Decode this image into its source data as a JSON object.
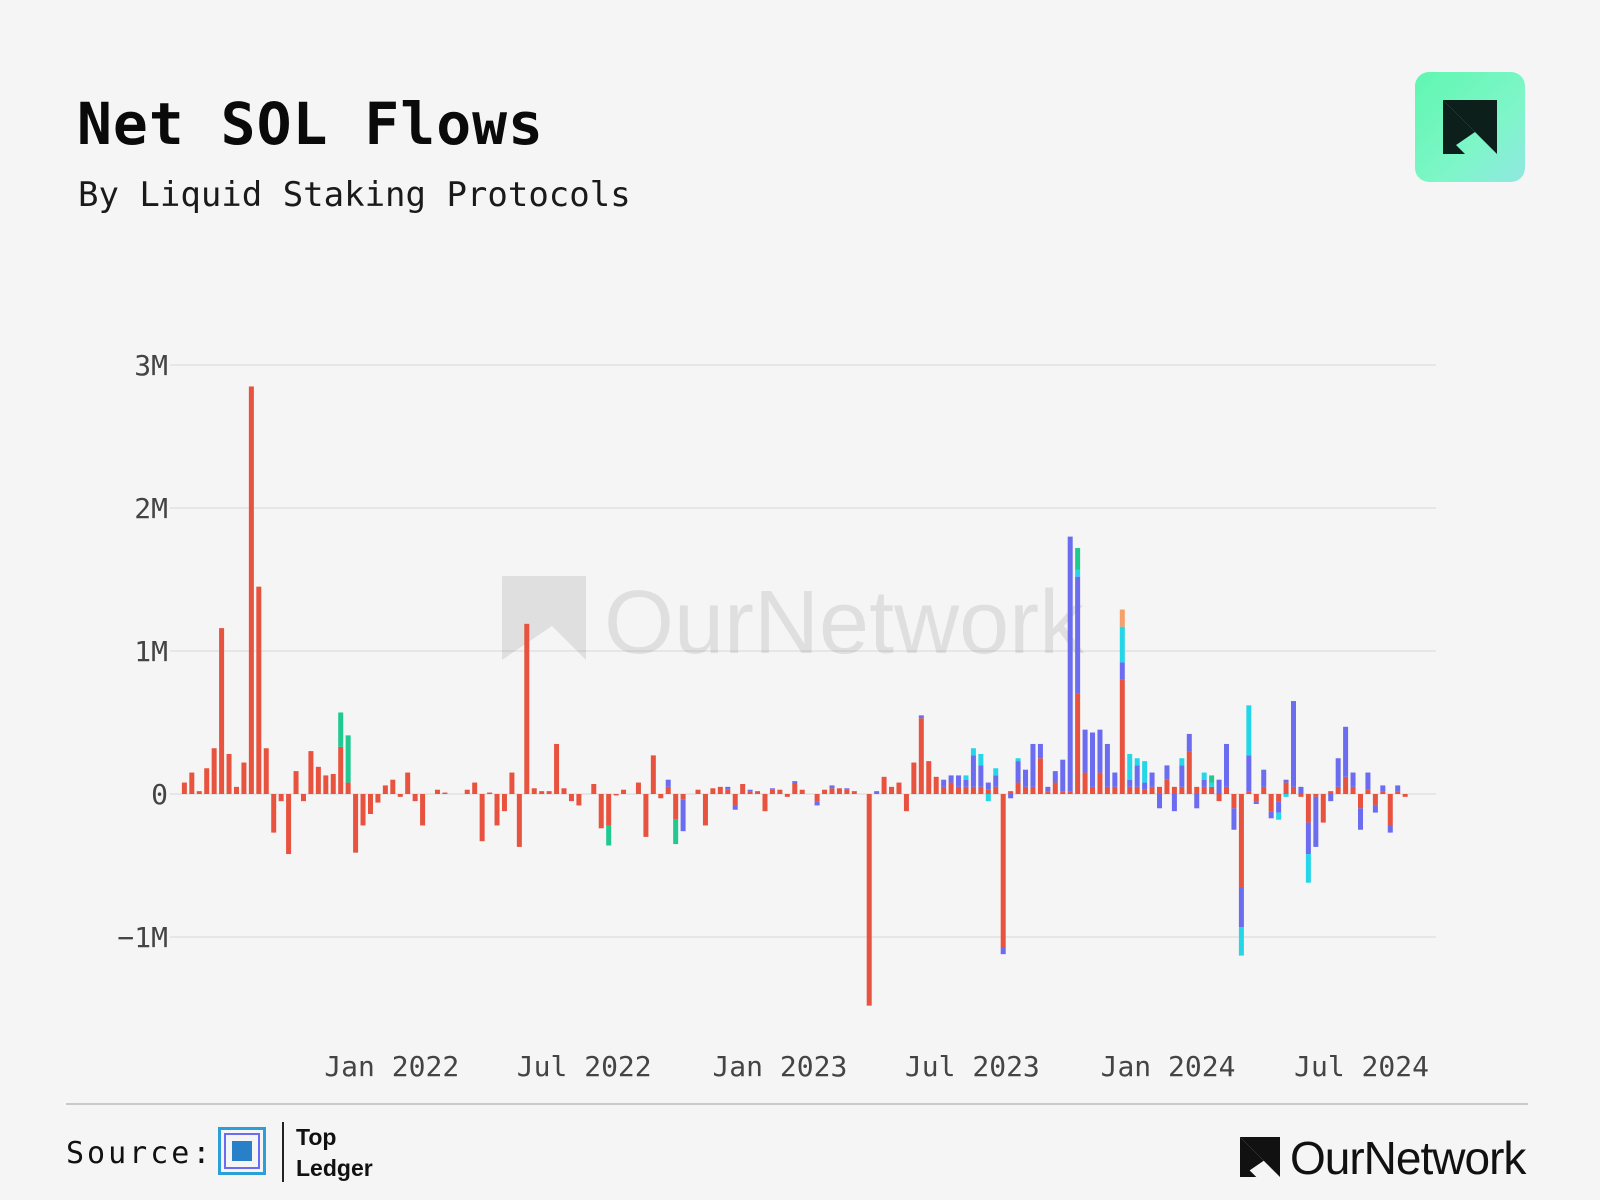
{
  "title": "Net SOL Flows",
  "subtitle": "By Liquid Staking Protocols",
  "footer": {
    "source_label": "Source:",
    "source_name": "Top Ledger",
    "brand": "OurNetwork"
  },
  "watermark": "OurNetwork",
  "colors": {
    "background": "#f5f5f5",
    "red": "#e8533f",
    "blue": "#6b6cf0",
    "cyan": "#25d6e8",
    "green": "#1fc990",
    "orange": "#f5a06a",
    "grid": "#e2e2e2",
    "logo_green": "#5ff7b0"
  },
  "chart_data": {
    "type": "bar",
    "stacked": true,
    "ylim": [
      -1.55,
      3.1
    ],
    "yticks": [
      3,
      2,
      1,
      0,
      -1
    ],
    "ytick_labels": [
      "3M",
      "2M",
      "1M",
      "0",
      "−1M"
    ],
    "xlim": [
      "2021-06-14",
      "2024-09-09"
    ],
    "xticks": [
      "2022-01-01",
      "2022-07-01",
      "2023-01-01",
      "2023-07-01",
      "2024-01-01",
      "2024-07-01"
    ],
    "xtick_labels": [
      "Jan 2022",
      "Jul 2022",
      "Jan 2023",
      "Jul 2023",
      "Jan 2024",
      "Jul 2024"
    ],
    "grid": true,
    "units": "SOL (millions)",
    "series": [
      {
        "color": "#e8533f"
      },
      {
        "color": "#6b6cf0"
      },
      {
        "color": "#25d6e8"
      },
      {
        "color": "#1fc990"
      },
      {
        "color": "#f5a06a"
      }
    ],
    "bars": [
      {
        "date": "2021-06-20",
        "values": [
          0.08
        ]
      },
      {
        "date": "2021-06-27",
        "values": [
          0.15
        ]
      },
      {
        "date": "2021-07-04",
        "values": [
          0.02
        ]
      },
      {
        "date": "2021-07-11",
        "values": [
          0.18
        ]
      },
      {
        "date": "2021-07-18",
        "values": [
          0.32
        ]
      },
      {
        "date": "2021-07-25",
        "values": [
          1.16
        ]
      },
      {
        "date": "2021-08-01",
        "values": [
          0.28
        ]
      },
      {
        "date": "2021-08-08",
        "values": [
          0.05
        ]
      },
      {
        "date": "2021-08-15",
        "values": [
          0.22
        ]
      },
      {
        "date": "2021-08-22",
        "values": [
          2.85
        ]
      },
      {
        "date": "2021-08-29",
        "values": [
          1.45
        ]
      },
      {
        "date": "2021-09-05",
        "values": [
          0.32
        ]
      },
      {
        "date": "2021-09-12",
        "values": [
          -0.27
        ]
      },
      {
        "date": "2021-09-19",
        "values": [
          -0.05
        ]
      },
      {
        "date": "2021-09-26",
        "values": [
          -0.42
        ]
      },
      {
        "date": "2021-10-03",
        "values": [
          0.16
        ]
      },
      {
        "date": "2021-10-10",
        "values": [
          -0.05
        ]
      },
      {
        "date": "2021-10-17",
        "values": [
          0.3
        ]
      },
      {
        "date": "2021-10-24",
        "values": [
          0.19
        ]
      },
      {
        "date": "2021-10-31",
        "values": [
          0.13
        ]
      },
      {
        "date": "2021-11-07",
        "values": [
          0.14
        ]
      },
      {
        "date": "2021-11-14",
        "values": [
          0.33,
          0,
          0,
          0.24
        ]
      },
      {
        "date": "2021-11-21",
        "values": [
          0.08,
          0,
          0,
          0.33
        ]
      },
      {
        "date": "2021-11-28",
        "values": [
          -0.41
        ]
      },
      {
        "date": "2021-12-05",
        "values": [
          -0.22
        ]
      },
      {
        "date": "2021-12-12",
        "values": [
          -0.14
        ]
      },
      {
        "date": "2021-12-19",
        "values": [
          -0.06
        ]
      },
      {
        "date": "2021-12-26",
        "values": [
          0.06
        ]
      },
      {
        "date": "2022-01-02",
        "values": [
          0.1
        ]
      },
      {
        "date": "2022-01-09",
        "values": [
          -0.02
        ]
      },
      {
        "date": "2022-01-16",
        "values": [
          0.15
        ]
      },
      {
        "date": "2022-01-23",
        "values": [
          -0.05
        ]
      },
      {
        "date": "2022-01-30",
        "values": [
          -0.22
        ]
      },
      {
        "date": "2022-02-13",
        "values": [
          0.03
        ]
      },
      {
        "date": "2022-02-20",
        "values": [
          0.01
        ]
      },
      {
        "date": "2022-03-13",
        "values": [
          0.03
        ]
      },
      {
        "date": "2022-03-20",
        "values": [
          0.08
        ]
      },
      {
        "date": "2022-03-27",
        "values": [
          -0.33
        ]
      },
      {
        "date": "2022-04-03",
        "values": [
          0.01
        ]
      },
      {
        "date": "2022-04-10",
        "values": [
          -0.22
        ]
      },
      {
        "date": "2022-04-17",
        "values": [
          -0.12
        ]
      },
      {
        "date": "2022-04-24",
        "values": [
          0.15
        ]
      },
      {
        "date": "2022-05-01",
        "values": [
          -0.37
        ]
      },
      {
        "date": "2022-05-08",
        "values": [
          1.19
        ]
      },
      {
        "date": "2022-05-15",
        "values": [
          0.04
        ]
      },
      {
        "date": "2022-05-22",
        "values": [
          0.02
        ]
      },
      {
        "date": "2022-05-29",
        "values": [
          0.02
        ]
      },
      {
        "date": "2022-06-05",
        "values": [
          0.35
        ]
      },
      {
        "date": "2022-06-12",
        "values": [
          0.04
        ]
      },
      {
        "date": "2022-06-19",
        "values": [
          -0.05
        ]
      },
      {
        "date": "2022-06-26",
        "values": [
          -0.08
        ]
      },
      {
        "date": "2022-07-10",
        "values": [
          0.07
        ]
      },
      {
        "date": "2022-07-17",
        "values": [
          -0.24
        ]
      },
      {
        "date": "2022-07-24",
        "values": [
          -0.22,
          0,
          0,
          -0.14
        ]
      },
      {
        "date": "2022-07-31",
        "values": [
          -0.01
        ]
      },
      {
        "date": "2022-08-07",
        "values": [
          0.03
        ]
      },
      {
        "date": "2022-08-21",
        "values": [
          0.08
        ]
      },
      {
        "date": "2022-08-28",
        "values": [
          -0.3
        ]
      },
      {
        "date": "2022-09-04",
        "values": [
          0.27
        ]
      },
      {
        "date": "2022-09-11",
        "values": [
          -0.03
        ]
      },
      {
        "date": "2022-09-18",
        "values": [
          0.05,
          0.05
        ]
      },
      {
        "date": "2022-09-25",
        "values": [
          -0.18,
          0,
          0,
          -0.17
        ]
      },
      {
        "date": "2022-10-02",
        "values": [
          -0.04,
          -0.22
        ]
      },
      {
        "date": "2022-10-16",
        "values": [
          0.03
        ]
      },
      {
        "date": "2022-10-23",
        "values": [
          -0.22
        ]
      },
      {
        "date": "2022-10-30",
        "values": [
          0.04
        ]
      },
      {
        "date": "2022-11-06",
        "values": [
          0.05
        ]
      },
      {
        "date": "2022-11-13",
        "values": [
          0.03,
          0.02
        ]
      },
      {
        "date": "2022-11-20",
        "values": [
          -0.08,
          -0.03
        ]
      },
      {
        "date": "2022-11-27",
        "values": [
          0.07
        ]
      },
      {
        "date": "2022-12-04",
        "values": [
          0.02,
          0.01
        ]
      },
      {
        "date": "2022-12-11",
        "values": [
          0.02
        ]
      },
      {
        "date": "2022-12-18",
        "values": [
          -0.12
        ]
      },
      {
        "date": "2022-12-25",
        "values": [
          0.03,
          0.01
        ]
      },
      {
        "date": "2023-01-01",
        "values": [
          0.03
        ]
      },
      {
        "date": "2023-01-08",
        "values": [
          -0.02
        ]
      },
      {
        "date": "2023-01-15",
        "values": [
          0.07,
          0.02
        ]
      },
      {
        "date": "2023-01-22",
        "values": [
          0.03
        ]
      },
      {
        "date": "2023-02-05",
        "values": [
          -0.05,
          -0.03
        ]
      },
      {
        "date": "2023-02-12",
        "values": [
          0.03
        ]
      },
      {
        "date": "2023-02-19",
        "values": [
          0.04,
          0.02
        ]
      },
      {
        "date": "2023-02-26",
        "values": [
          0.04
        ]
      },
      {
        "date": "2023-03-05",
        "values": [
          0.03,
          0.01
        ]
      },
      {
        "date": "2023-03-12",
        "values": [
          0.02
        ]
      },
      {
        "date": "2023-03-26",
        "values": [
          -1.48
        ]
      },
      {
        "date": "2023-04-02",
        "values": [
          0,
          0.02
        ]
      },
      {
        "date": "2023-04-09",
        "values": [
          0.12
        ]
      },
      {
        "date": "2023-04-16",
        "values": [
          0.05
        ]
      },
      {
        "date": "2023-04-23",
        "values": [
          0.08
        ]
      },
      {
        "date": "2023-04-30",
        "values": [
          -0.12
        ]
      },
      {
        "date": "2023-05-07",
        "values": [
          0.22
        ]
      },
      {
        "date": "2023-05-14",
        "values": [
          0.53,
          0.02
        ]
      },
      {
        "date": "2023-05-21",
        "values": [
          0.23
        ]
      },
      {
        "date": "2023-05-28",
        "values": [
          0.12
        ]
      },
      {
        "date": "2023-06-04",
        "values": [
          0.05,
          0.05
        ]
      },
      {
        "date": "2023-06-11",
        "values": [
          0.08,
          0.05
        ]
      },
      {
        "date": "2023-06-18",
        "values": [
          0.05,
          0.08
        ]
      },
      {
        "date": "2023-06-25",
        "values": [
          0.05,
          0.05,
          0.03
        ]
      },
      {
        "date": "2023-07-02",
        "values": [
          0.05,
          0.22,
          0.05
        ]
      },
      {
        "date": "2023-07-09",
        "values": [
          0.05,
          0.15,
          0.08
        ]
      },
      {
        "date": "2023-07-16",
        "values": [
          0.03,
          0.05,
          -0.05
        ]
      },
      {
        "date": "2023-07-23",
        "values": [
          0.05,
          0.08,
          0.05
        ]
      },
      {
        "date": "2023-07-30",
        "values": [
          -1.07,
          -0.05
        ]
      },
      {
        "date": "2023-08-06",
        "values": [
          0.02,
          -0.03
        ]
      },
      {
        "date": "2023-08-13",
        "values": [
          0.08,
          0.15,
          0.02
        ]
      },
      {
        "date": "2023-08-20",
        "values": [
          0.05,
          0.12
        ]
      },
      {
        "date": "2023-08-27",
        "values": [
          0.05,
          0.3
        ]
      },
      {
        "date": "2023-09-03",
        "values": [
          0.25,
          0.1
        ]
      },
      {
        "date": "2023-09-10",
        "values": [
          0.02,
          0.03
        ]
      },
      {
        "date": "2023-09-17",
        "values": [
          0.08,
          0.08
        ]
      },
      {
        "date": "2023-09-24",
        "values": [
          0.02,
          0.22
        ]
      },
      {
        "date": "2023-10-01",
        "values": [
          0.02,
          1.78
        ]
      },
      {
        "date": "2023-10-08",
        "values": [
          0.7,
          0.82,
          0.05,
          0.15
        ]
      },
      {
        "date": "2023-10-15",
        "values": [
          0.15,
          0.3
        ]
      },
      {
        "date": "2023-10-22",
        "values": [
          0.05,
          0.38
        ]
      },
      {
        "date": "2023-10-29",
        "values": [
          0.15,
          0.3
        ]
      },
      {
        "date": "2023-11-05",
        "values": [
          0.05,
          0.3
        ]
      },
      {
        "date": "2023-11-12",
        "values": [
          0.05,
          0.1
        ]
      },
      {
        "date": "2023-11-19",
        "values": [
          0.8,
          0.12,
          0.25,
          0,
          0.12
        ]
      },
      {
        "date": "2023-11-26",
        "values": [
          0.05,
          0.05,
          0.18
        ]
      },
      {
        "date": "2023-12-03",
        "values": [
          0.05,
          0.15,
          0.05
        ]
      },
      {
        "date": "2023-12-10",
        "values": [
          0.03,
          0.05,
          0.15
        ]
      },
      {
        "date": "2023-12-17",
        "values": [
          0.05,
          0.1
        ]
      },
      {
        "date": "2023-12-24",
        "values": [
          0.05,
          -0.1
        ]
      },
      {
        "date": "2023-12-31",
        "values": [
          0.1,
          0.1
        ]
      },
      {
        "date": "2024-01-07",
        "values": [
          0.05,
          -0.12
        ]
      },
      {
        "date": "2024-01-14",
        "values": [
          0.05,
          0.15,
          0.05
        ]
      },
      {
        "date": "2024-01-21",
        "values": [
          0.3,
          0.12
        ]
      },
      {
        "date": "2024-01-28",
        "values": [
          0.05,
          -0.1
        ]
      },
      {
        "date": "2024-02-04",
        "values": [
          0.05,
          0.05,
          0.05
        ]
      },
      {
        "date": "2024-02-11",
        "values": [
          0.05,
          0,
          0.03,
          0.05
        ]
      },
      {
        "date": "2024-02-18",
        "values": [
          -0.05,
          0.1
        ]
      },
      {
        "date": "2024-02-25",
        "values": [
          0.05,
          0.3
        ]
      },
      {
        "date": "2024-03-03",
        "values": [
          -0.1,
          -0.15
        ]
      },
      {
        "date": "2024-03-10",
        "values": [
          -0.65,
          -0.28,
          -0.2
        ]
      },
      {
        "date": "2024-03-17",
        "values": [
          0.02,
          0.25,
          0.35
        ]
      },
      {
        "date": "2024-03-24",
        "values": [
          -0.05,
          -0.02
        ]
      },
      {
        "date": "2024-03-31",
        "values": [
          0.05,
          0.12
        ]
      },
      {
        "date": "2024-04-07",
        "values": [
          -0.12,
          -0.05
        ]
      },
      {
        "date": "2024-04-14",
        "values": [
          -0.05,
          -0.08,
          -0.05
        ]
      },
      {
        "date": "2024-04-21",
        "values": [
          0.08,
          0.02,
          -0.02
        ]
      },
      {
        "date": "2024-04-28",
        "values": [
          0.05,
          0.6
        ]
      },
      {
        "date": "2024-05-05",
        "values": [
          -0.02,
          0.05
        ]
      },
      {
        "date": "2024-05-12",
        "values": [
          -0.2,
          -0.22,
          -0.2
        ]
      },
      {
        "date": "2024-05-19",
        "values": [
          -0.02,
          -0.35
        ]
      },
      {
        "date": "2024-05-26",
        "values": [
          -0.2
        ]
      },
      {
        "date": "2024-06-02",
        "values": [
          0.02,
          -0.05
        ]
      },
      {
        "date": "2024-06-09",
        "values": [
          0.05,
          0.2
        ]
      },
      {
        "date": "2024-06-16",
        "values": [
          0.12,
          0.35
        ]
      },
      {
        "date": "2024-06-23",
        "values": [
          0.05,
          0.1
        ]
      },
      {
        "date": "2024-06-30",
        "values": [
          -0.1,
          -0.15
        ]
      },
      {
        "date": "2024-07-07",
        "values": [
          0.03,
          0.12
        ]
      },
      {
        "date": "2024-07-14",
        "values": [
          -0.08,
          -0.05
        ]
      },
      {
        "date": "2024-07-21",
        "values": [
          0.02,
          0.04
        ]
      },
      {
        "date": "2024-07-28",
        "values": [
          -0.22,
          -0.05
        ]
      },
      {
        "date": "2024-08-04",
        "values": [
          0.02,
          0.04
        ]
      },
      {
        "date": "2024-08-11",
        "values": [
          -0.02
        ]
      }
    ]
  }
}
